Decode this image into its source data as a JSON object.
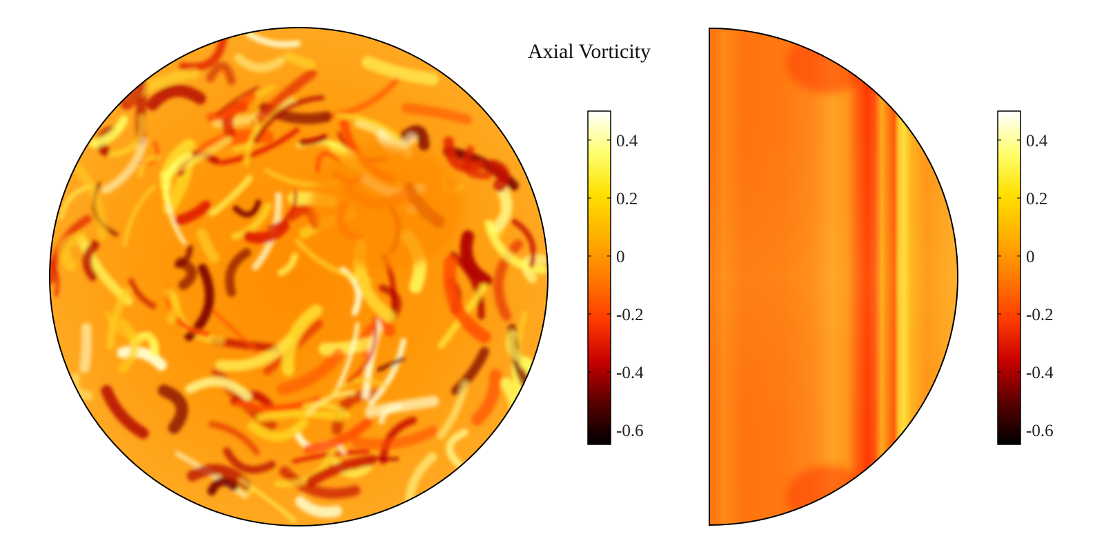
{
  "chart_data": {
    "type": "heatmap",
    "title": "Axial Vorticity",
    "colormap": "hot",
    "colormap_stops": [
      "#000000",
      "#5a0000",
      "#c80000",
      "#ff3c00",
      "#ff7a00",
      "#ffb000",
      "#ffe000",
      "#ffff70",
      "#ffffff"
    ],
    "panels": [
      {
        "shape": "full-disk",
        "field": "turbulent swirling filaments",
        "colorbar": {
          "range": [
            -0.65,
            0.5
          ],
          "ticks": [
            0.4,
            0.2,
            0,
            -0.2,
            -0.4,
            -0.6
          ],
          "tick_labels": [
            "0.4",
            "0.2",
            "0",
            "-0.2",
            "-0.4",
            "-0.6"
          ]
        }
      },
      {
        "shape": "half-disk",
        "field": "vertical stripes",
        "colorbar": {
          "range": [
            -0.65,
            0.5
          ],
          "ticks": [
            0.4,
            0.2,
            0,
            -0.2,
            -0.4,
            -0.6
          ],
          "tick_labels": [
            "0.4",
            "0.2",
            "0",
            "-0.2",
            "-0.4",
            "-0.6"
          ]
        }
      }
    ]
  }
}
